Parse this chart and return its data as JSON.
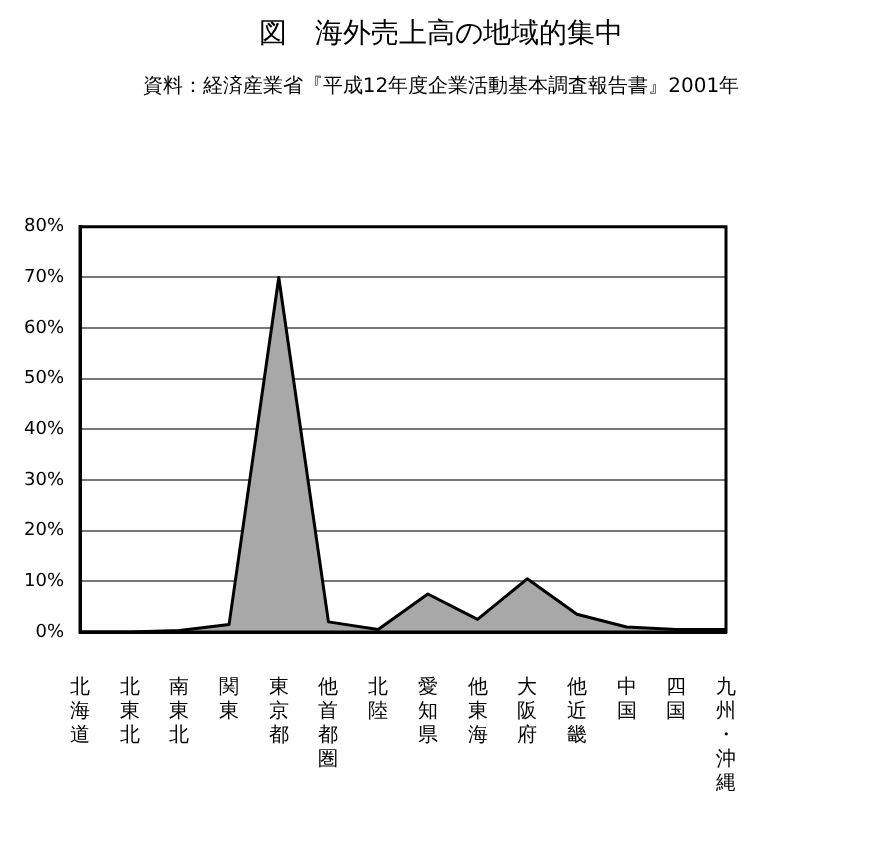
{
  "chart_data": {
    "type": "area",
    "title": "図　海外売上高の地域的集中",
    "subtitle": "資料：経済産業省『平成12年度企業活動基本調査報告書』2001年",
    "categories": [
      "北海道",
      "北東北",
      "南東北",
      "関東",
      "東京都",
      "他首都圏",
      "北陸",
      "愛知県",
      "他東海",
      "大阪府",
      "他近畿",
      "中国",
      "四国",
      "九州・沖縄"
    ],
    "values": [
      0,
      0,
      0.3,
      1.5,
      70,
      2,
      0.5,
      7.5,
      2.5,
      10.5,
      3.5,
      1,
      0.5,
      0.5
    ],
    "color": "#a8a8a8",
    "ylim": [
      0,
      80
    ],
    "yticks": [
      {
        "value": 0,
        "label": "0%"
      },
      {
        "value": 10,
        "label": "10%"
      },
      {
        "value": 20,
        "label": "20%"
      },
      {
        "value": 30,
        "label": "30%"
      },
      {
        "value": 40,
        "label": "40%"
      },
      {
        "value": 50,
        "label": "50%"
      },
      {
        "value": 60,
        "label": "60%"
      },
      {
        "value": 70,
        "label": "70%"
      },
      {
        "value": 80,
        "label": "80%"
      }
    ],
    "grid": "y",
    "legend": false,
    "line_style": "solid",
    "marker": "none"
  }
}
